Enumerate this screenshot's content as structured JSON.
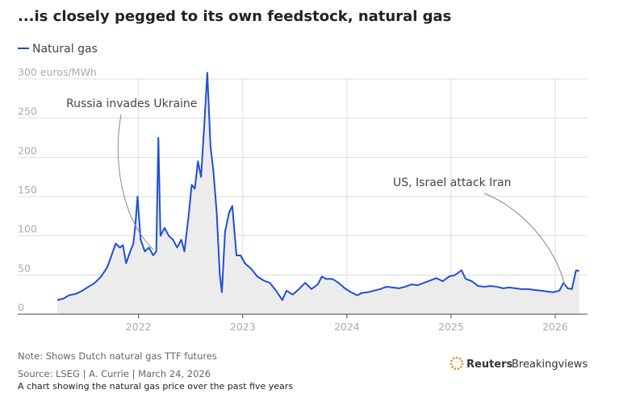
{
  "chart_data": {
    "type": "line",
    "title": "...is closely pegged to its own feedstock, natural gas",
    "annotations": [
      "Russia invades Ukraine",
      "US, Israel attack Iran"
    ],
    "note": "Note: Shows Dutch natural gas TTF futures",
    "source": "Source: LSEG | A. Currie | March 24, 2026",
    "caption": "A chart showing the natural gas price over the past five years",
    "brand": [
      "Reuters",
      "Breakingviews"
    ],
    "grid": true,
    "xlim": [
      2020.84,
      2026.31
    ],
    "xticks": [
      2022,
      2023,
      2024,
      2025,
      2026
    ],
    "ylim": [
      0,
      300
    ],
    "yticks": [
      0,
      50,
      100,
      150,
      200,
      250,
      {
        "value": 300,
        "label": "300 euros/MWh"
      }
    ],
    "x": [
      2021.22,
      2021.28,
      2021.33,
      2021.4,
      2021.46,
      2021.52,
      2021.58,
      2021.64,
      2021.7,
      2021.74,
      2021.78,
      2021.82,
      2021.85,
      2021.88,
      2021.92,
      2021.95,
      2021.97,
      2021.99,
      2022.02,
      2022.06,
      2022.1,
      2022.14,
      2022.17,
      2022.19,
      2022.21,
      2022.25,
      2022.29,
      2022.33,
      2022.37,
      2022.41,
      2022.44,
      2022.48,
      2022.51,
      2022.54,
      2022.57,
      2022.6,
      2022.63,
      2022.66,
      2022.69,
      2022.72,
      2022.75,
      2022.78,
      2022.8,
      2022.83,
      2022.87,
      2022.9,
      2022.94,
      2022.98,
      2023.02,
      2023.08,
      2023.14,
      2023.2,
      2023.26,
      2023.32,
      2023.38,
      2023.42,
      2023.48,
      2023.54,
      2023.6,
      2023.66,
      2023.72,
      2023.76,
      2023.8,
      2023.86,
      2023.92,
      2023.98,
      2024.04,
      2024.1,
      2024.14,
      2024.2,
      2024.26,
      2024.32,
      2024.38,
      2024.44,
      2024.5,
      2024.56,
      2024.62,
      2024.68,
      2024.74,
      2024.8,
      2024.86,
      2024.92,
      2024.98,
      2025.04,
      2025.1,
      2025.14,
      2025.2,
      2025.26,
      2025.32,
      2025.38,
      2025.44,
      2025.5,
      2025.56,
      2025.62,
      2025.68,
      2025.74,
      2025.8,
      2025.86,
      2025.92,
      2025.98,
      2026.04,
      2026.08,
      2026.12,
      2026.16,
      2026.2,
      2026.23
    ],
    "series": [
      {
        "name": "Natural gas",
        "color": "#1f4fd8",
        "values": [
          18,
          20,
          24,
          26,
          30,
          35,
          40,
          48,
          60,
          75,
          90,
          85,
          88,
          65,
          80,
          90,
          115,
          150,
          95,
          80,
          85,
          75,
          80,
          225,
          100,
          110,
          100,
          95,
          85,
          95,
          80,
          125,
          165,
          160,
          195,
          175,
          240,
          308,
          215,
          180,
          130,
          50,
          28,
          105,
          130,
          138,
          75,
          75,
          65,
          58,
          48,
          43,
          40,
          30,
          18,
          30,
          25,
          32,
          40,
          32,
          38,
          48,
          45,
          45,
          40,
          33,
          28,
          24,
          27,
          28,
          30,
          32,
          35,
          34,
          33,
          35,
          38,
          37,
          40,
          43,
          46,
          42,
          48,
          50,
          56,
          45,
          42,
          36,
          35,
          36,
          35,
          33,
          34,
          33,
          32,
          32,
          31,
          30,
          29,
          28,
          30,
          40,
          33,
          32,
          56,
          55
        ]
      }
    ]
  }
}
